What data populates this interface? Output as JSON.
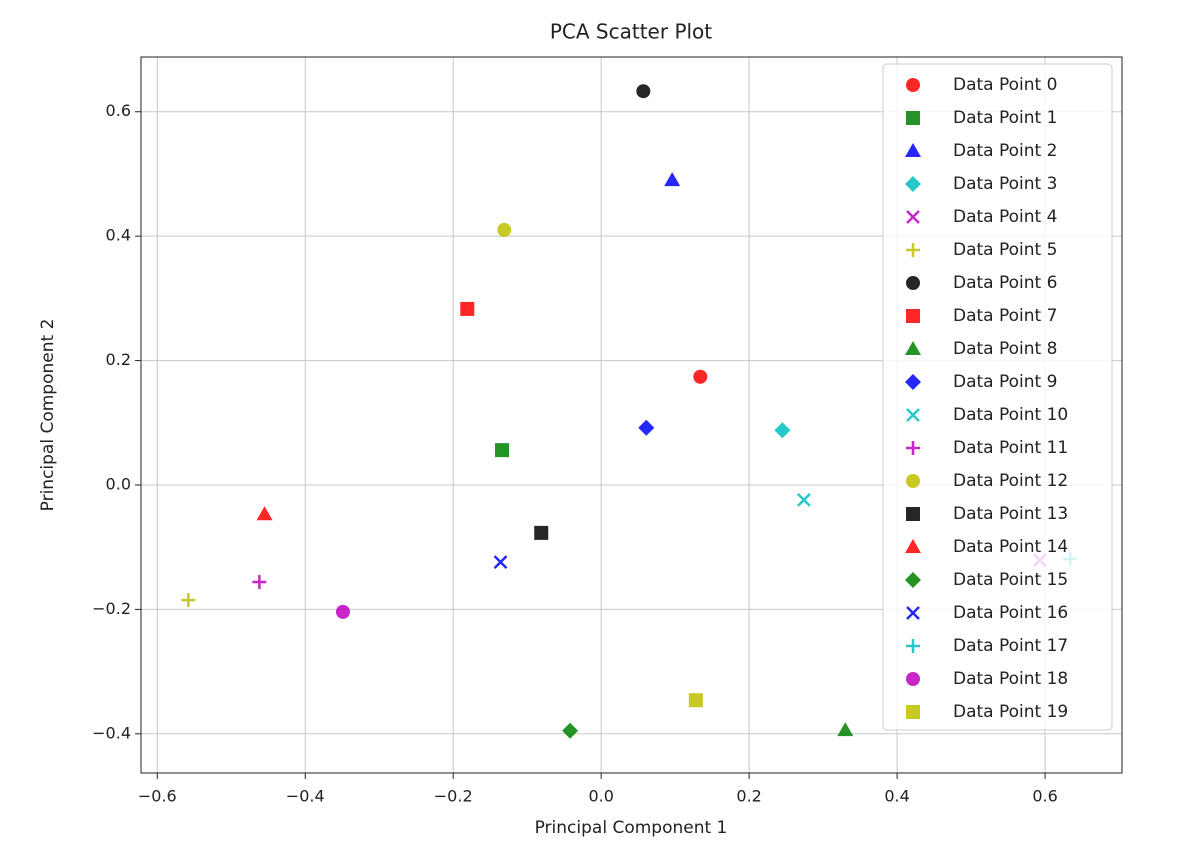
{
  "chart_data": {
    "type": "scatter",
    "title": "PCA Scatter Plot",
    "x_label": "Principal Component 1",
    "y_label": "Principal Component 2",
    "xlim": [
      -0.622,
      0.704
    ],
    "ylim": [
      -0.463,
      0.688
    ],
    "xticks": [
      {
        "value": -0.6,
        "label": "−0.6"
      },
      {
        "value": -0.4,
        "label": "−0.4"
      },
      {
        "value": -0.2,
        "label": "−0.2"
      },
      {
        "value": 0,
        "label": "0.0"
      },
      {
        "value": 0.2,
        "label": "0.2"
      },
      {
        "value": 0.4,
        "label": "0.4"
      },
      {
        "value": 0.6,
        "label": "0.6"
      }
    ],
    "yticks": [
      {
        "value": -0.4,
        "label": "−0.4"
      },
      {
        "value": -0.2,
        "label": "−0.2"
      },
      {
        "value": 0,
        "label": "0.0"
      },
      {
        "value": 0.2,
        "label": "0.2"
      },
      {
        "value": 0.4,
        "label": "0.4"
      },
      {
        "value": 0.6,
        "label": "0.6"
      }
    ],
    "grid": true,
    "legend": "upper right",
    "series": [
      {
        "name": "Data Point 0",
        "color": "#ff0000",
        "marker": "circle",
        "x": [
          0.134
        ],
        "values": [
          0.174
        ]
      },
      {
        "name": "Data Point 1",
        "color": "#008000",
        "marker": "square",
        "x": [
          -0.134
        ],
        "values": [
          0.056
        ]
      },
      {
        "name": "Data Point 2",
        "color": "#0000ff",
        "marker": "triangle",
        "x": [
          0.096
        ],
        "values": [
          0.49
        ]
      },
      {
        "name": "Data Point 3",
        "color": "#00bfbf",
        "marker": "diamond",
        "x": [
          0.245
        ],
        "values": [
          0.088
        ]
      },
      {
        "name": "Data Point 4",
        "color": "#bf00bf",
        "marker": "x",
        "x": [
          0.593
        ],
        "values": [
          -0.121
        ]
      },
      {
        "name": "Data Point 5",
        "color": "#bfbf00",
        "marker": "plus",
        "x": [
          -0.558
        ],
        "values": [
          -0.185
        ]
      },
      {
        "name": "Data Point 6",
        "color": "#000000",
        "marker": "circle",
        "x": [
          0.057
        ],
        "values": [
          0.633
        ]
      },
      {
        "name": "Data Point 7",
        "color": "#ff0000",
        "marker": "square",
        "x": [
          -0.181
        ],
        "values": [
          0.283
        ]
      },
      {
        "name": "Data Point 8",
        "color": "#008000",
        "marker": "triangle",
        "x": [
          0.33
        ],
        "values": [
          -0.394
        ]
      },
      {
        "name": "Data Point 9",
        "color": "#0000ff",
        "marker": "diamond",
        "x": [
          0.061
        ],
        "values": [
          0.092
        ]
      },
      {
        "name": "Data Point 10",
        "color": "#00bfbf",
        "marker": "x",
        "x": [
          0.274
        ],
        "values": [
          -0.024
        ]
      },
      {
        "name": "Data Point 11",
        "color": "#bf00bf",
        "marker": "plus",
        "x": [
          -0.462
        ],
        "values": [
          -0.156
        ]
      },
      {
        "name": "Data Point 12",
        "color": "#bfbf00",
        "marker": "circle",
        "x": [
          -0.131
        ],
        "values": [
          0.41
        ]
      },
      {
        "name": "Data Point 13",
        "color": "#000000",
        "marker": "square",
        "x": [
          -0.081
        ],
        "values": [
          -0.077
        ]
      },
      {
        "name": "Data Point 14",
        "color": "#ff0000",
        "marker": "triangle",
        "x": [
          -0.455
        ],
        "values": [
          -0.047
        ]
      },
      {
        "name": "Data Point 15",
        "color": "#008000",
        "marker": "diamond",
        "x": [
          -0.042
        ],
        "values": [
          -0.395
        ]
      },
      {
        "name": "Data Point 16",
        "color": "#0000ff",
        "marker": "x",
        "x": [
          -0.136
        ],
        "values": [
          -0.124
        ]
      },
      {
        "name": "Data Point 17",
        "color": "#00bfbf",
        "marker": "plus",
        "x": [
          0.634
        ],
        "values": [
          -0.119
        ]
      },
      {
        "name": "Data Point 18",
        "color": "#bf00bf",
        "marker": "circle",
        "x": [
          -0.349
        ],
        "values": [
          -0.204
        ]
      },
      {
        "name": "Data Point 19",
        "color": "#bfbf00",
        "marker": "square",
        "x": [
          0.128
        ],
        "values": [
          -0.346
        ]
      }
    ]
  }
}
